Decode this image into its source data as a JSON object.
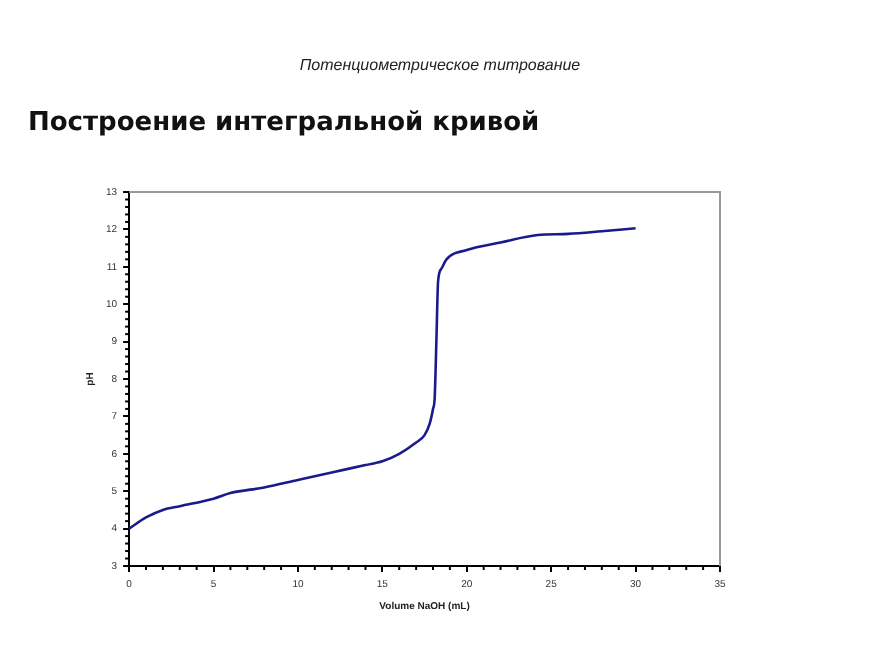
{
  "chart_data": {
    "type": "line",
    "subtitle": "Потенциометрическое титрование",
    "title": "Построение интегральной кривой",
    "xlabel": "Volume NaOH (mL)",
    "ylabel": "pH",
    "xlim": [
      0,
      35
    ],
    "xticks": [
      0,
      5,
      10,
      15,
      20,
      25,
      30,
      35
    ],
    "ylim": [
      3,
      13
    ],
    "yticks": [
      3,
      4,
      5,
      6,
      7,
      8,
      9,
      10,
      11,
      12,
      13
    ],
    "grid": false,
    "legend": false,
    "marker": "none",
    "series": [
      {
        "color": "#1a1a8c",
        "x": [
          0,
          1,
          2,
          3,
          5,
          6,
          8,
          10,
          12,
          14,
          15,
          16,
          17,
          17.5,
          17.8,
          18,
          18.1,
          18.2,
          18.3,
          18.5,
          18.8,
          20,
          22,
          24.2,
          26,
          28,
          30
        ],
        "values": [
          4.0,
          4.3,
          4.5,
          4.6,
          4.8,
          4.95,
          5.1,
          5.3,
          5.5,
          5.7,
          5.8,
          6.0,
          6.3,
          6.5,
          6.8,
          7.2,
          7.5,
          9.0,
          10.6,
          10.95,
          11.2,
          11.45,
          11.65,
          11.85,
          11.88,
          11.95,
          12.03
        ]
      }
    ]
  }
}
